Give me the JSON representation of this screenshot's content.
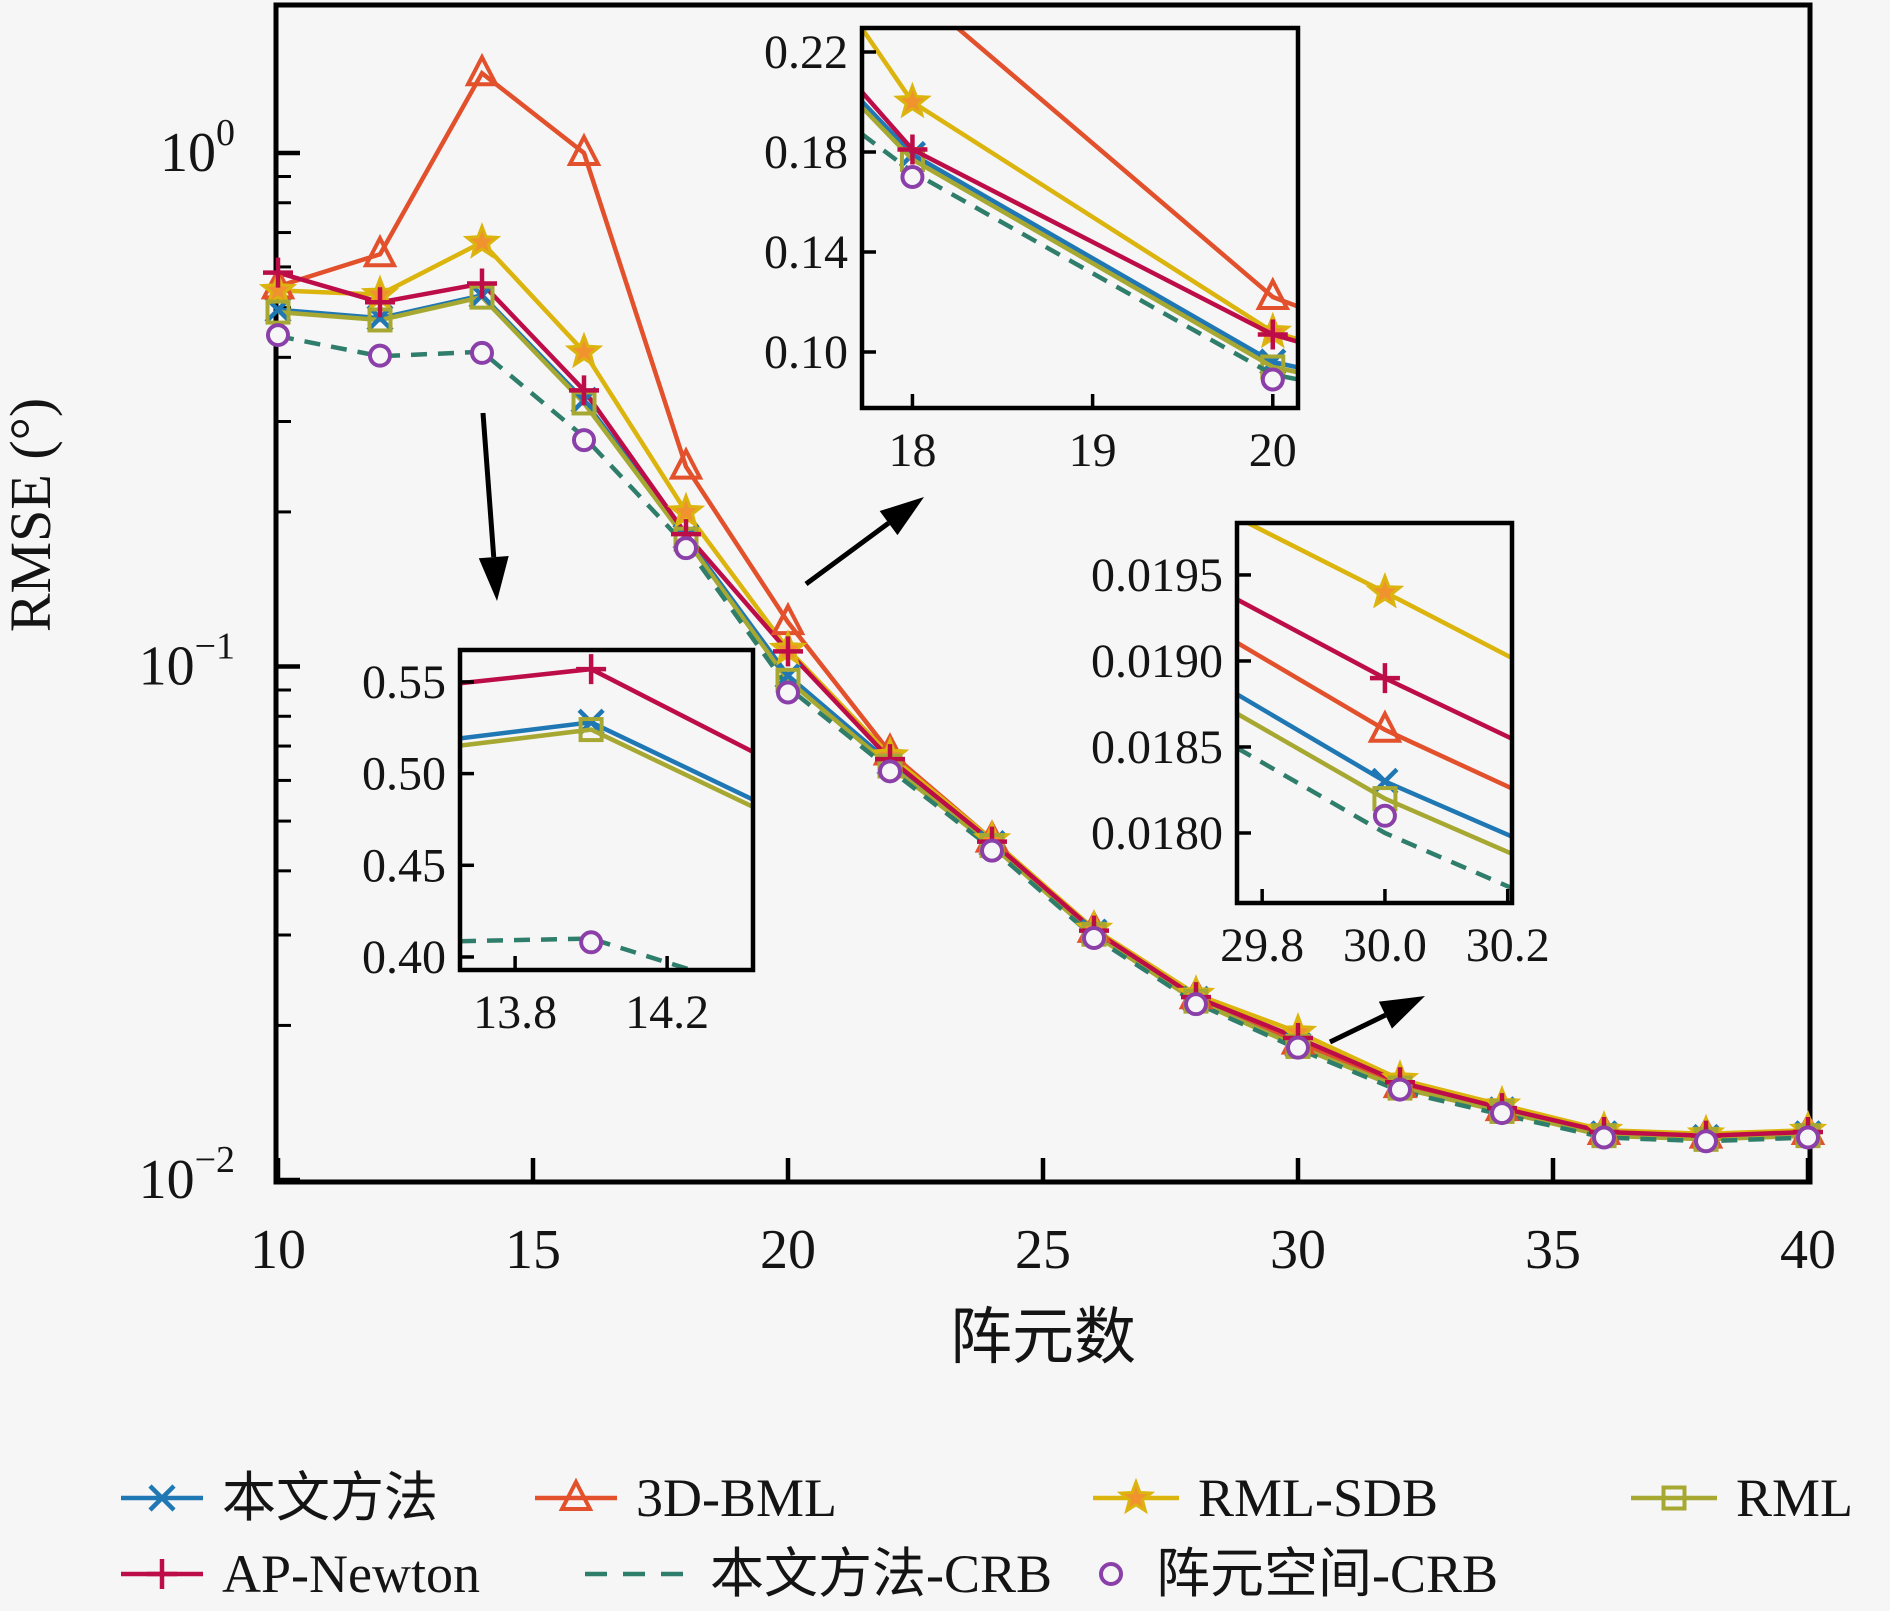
{
  "figure": {
    "background": "#f6f6f6",
    "axis_color": "#000000"
  },
  "chart_data": {
    "type": "line",
    "title": "",
    "xlabel": "阵元数",
    "ylabel": "RMSE (°)",
    "x_range": [
      10,
      40
    ],
    "y_scale": "log",
    "y_range": [
      0.01,
      1.94
    ],
    "grid": false,
    "legend_position": "below",
    "x_ticks": {
      "values": [
        10,
        15,
        20,
        25,
        30,
        35,
        40
      ],
      "labels": [
        "10",
        "15",
        "20",
        "25",
        "30",
        "35",
        "40"
      ]
    },
    "y_ticks": {
      "values": [
        1,
        0.1,
        0.01
      ],
      "labels": [
        {
          "base": "10",
          "exp": "0"
        },
        {
          "base": "10",
          "exp": "-1"
        },
        {
          "base": "10",
          "exp": "-2"
        }
      ]
    },
    "x": [
      10,
      12,
      14,
      16,
      18,
      20,
      22,
      24,
      26,
      28,
      30,
      32,
      34,
      36,
      38,
      40
    ],
    "series": [
      {
        "name": "本文方法",
        "color": "#1f77b4",
        "marker": "x",
        "line": "solid",
        "values": [
          0.495,
          0.477,
          0.528,
          0.33,
          0.179,
          0.096,
          0.065,
          0.0452,
          0.0304,
          0.0225,
          0.0183,
          0.0152,
          0.0137,
          0.0123,
          0.0121,
          0.0123
        ]
      },
      {
        "name": "3D-BML",
        "color": "#e2502c",
        "marker": "triangle",
        "line": "solid",
        "values": [
          0.55,
          0.635,
          1.43,
          1.0,
          0.245,
          0.122,
          0.068,
          0.046,
          0.0307,
          0.0228,
          0.0186,
          0.0153,
          0.0138,
          0.0124,
          0.0122,
          0.0124
        ]
      },
      {
        "name": "RML-SDB",
        "color": "#dcb40e",
        "marker": "star",
        "marker_fill": "#f0932e",
        "line": "solid",
        "values": [
          0.54,
          0.53,
          0.67,
          0.41,
          0.2,
          0.108,
          0.067,
          0.046,
          0.0308,
          0.023,
          0.0194,
          0.0157,
          0.014,
          0.0125,
          0.0123,
          0.0125
        ]
      },
      {
        "name": "RML",
        "color": "#a6a832",
        "marker": "square",
        "line": "solid",
        "values": [
          0.49,
          0.473,
          0.524,
          0.326,
          0.177,
          0.094,
          0.064,
          0.0448,
          0.0301,
          0.0223,
          0.0182,
          0.0151,
          0.0136,
          0.0122,
          0.012,
          0.0122
        ]
      },
      {
        "name": "AP-Newton",
        "color": "#bd0d48",
        "marker": "plus",
        "line": "solid",
        "values": [
          0.585,
          0.512,
          0.557,
          0.345,
          0.181,
          0.107,
          0.066,
          0.0456,
          0.0306,
          0.0227,
          0.0189,
          0.0155,
          0.0138,
          0.0124,
          0.0122,
          0.0124
        ]
      },
      {
        "name": "本文方法-CRB",
        "color": "#2f7d6b",
        "marker": "none",
        "line": "dashed",
        "values": [
          0.44,
          0.402,
          0.41,
          0.28,
          0.172,
          0.091,
          0.063,
          0.0442,
          0.0297,
          0.0221,
          0.018,
          0.0149,
          0.0134,
          0.0121,
          0.0119,
          0.0121
        ]
      },
      {
        "name": "阵元空间-CRB",
        "color": "#8b3fa8",
        "marker": "circle",
        "line": "none",
        "values": [
          0.442,
          0.403,
          0.408,
          0.276,
          0.17,
          0.089,
          0.0625,
          0.0438,
          0.0296,
          0.022,
          0.0181,
          0.015,
          0.0135,
          0.0121,
          0.0119,
          0.0121
        ]
      }
    ],
    "insets": [
      {
        "name": "zoom-18-20",
        "x_range": [
          17.72,
          20.14
        ],
        "y_range": [
          0.0776,
          0.2296
        ],
        "x_ticks": {
          "values": [
            18,
            19,
            20
          ],
          "labels": [
            "18",
            "19",
            "20"
          ]
        },
        "y_ticks": {
          "values": [
            0.1,
            0.14,
            0.18,
            0.22
          ],
          "labels": [
            "0.10",
            "0.14",
            "0.18",
            "0.22"
          ]
        }
      },
      {
        "name": "zoom-13.8-14.2",
        "x_range": [
          13.655,
          14.426
        ],
        "y_range": [
          0.3929,
          0.5674
        ],
        "x_ticks": {
          "values": [
            13.8,
            14.2
          ],
          "labels": [
            "13.8",
            "14.2"
          ]
        },
        "y_ticks": {
          "values": [
            0.4,
            0.45,
            0.5,
            0.55
          ],
          "labels": [
            "0.40",
            "0.45",
            "0.50",
            "0.55"
          ]
        }
      },
      {
        "name": "zoom-29.8-30.2",
        "x_range": [
          29.759,
          30.207
        ],
        "y_range": [
          0.017593,
          0.019802
        ],
        "x_ticks": {
          "values": [
            29.8,
            30.0,
            30.2
          ],
          "labels": [
            "29.8",
            "30.0",
            "30.2"
          ]
        },
        "y_ticks": {
          "values": [
            0.018,
            0.0185,
            0.019,
            0.0195
          ],
          "labels": [
            "0.0180",
            "0.0185",
            "0.0190",
            "0.0195"
          ]
        }
      }
    ]
  }
}
